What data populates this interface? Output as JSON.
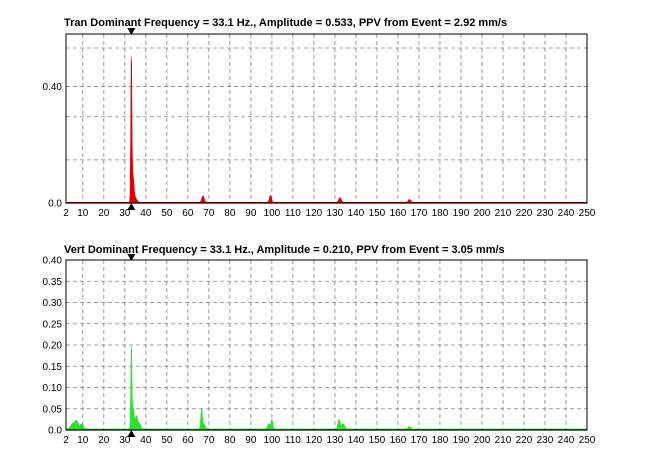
{
  "chart_data": [
    {
      "type": "area",
      "title": "Tran Dominant Frequency = 33.1 Hz., Amplitude = 0.533,  PPV from Event = 2.92 mm/s",
      "xlabel": "",
      "ylabel": "",
      "xlim": [
        2,
        250
      ],
      "ylim": [
        0,
        0.58
      ],
      "x_ticks": [
        "2",
        "10",
        "20",
        "30",
        "40",
        "50",
        "60",
        "70",
        "80",
        "90",
        "100",
        "110",
        "120",
        "130",
        "140",
        "150",
        "160",
        "170",
        "180",
        "190",
        "200",
        "210",
        "220",
        "230",
        "240",
        "250"
      ],
      "y_ticks": [
        {
          "value": 0.0,
          "label": "0.0"
        },
        {
          "value": 0.4,
          "label": "0.40"
        }
      ],
      "grid": true,
      "dominant_frequency": 33.1,
      "series": [
        {
          "color": "#e00000",
          "peaks": [
            {
              "x": 33.1,
              "y": 0.533,
              "w": 0.35
            },
            {
              "x": 33.9,
              "y": 0.09,
              "w": 0.6
            },
            {
              "x": 35.0,
              "y": 0.015,
              "w": 1.0
            },
            {
              "x": 67.2,
              "y": 0.022,
              "w": 0.8
            },
            {
              "x": 99.3,
              "y": 0.024,
              "w": 0.7
            },
            {
              "x": 132.4,
              "y": 0.016,
              "w": 0.8
            },
            {
              "x": 165.5,
              "y": 0.01,
              "w": 0.8
            }
          ]
        }
      ]
    },
    {
      "type": "area",
      "title": "Vert Dominant Frequency = 33.1 Hz., Amplitude = 0.210,  PPV from Event = 3.05 mm/s",
      "xlabel": "",
      "ylabel": "",
      "xlim": [
        2,
        250
      ],
      "ylim": [
        0,
        0.4
      ],
      "x_ticks": [
        "2",
        "10",
        "20",
        "30",
        "40",
        "50",
        "60",
        "70",
        "80",
        "90",
        "100",
        "110",
        "120",
        "130",
        "140",
        "150",
        "160",
        "170",
        "180",
        "190",
        "200",
        "210",
        "220",
        "230",
        "240",
        "250"
      ],
      "y_ticks": [
        {
          "value": 0.0,
          "label": "0.0"
        },
        {
          "value": 0.05,
          "label": "0.05"
        },
        {
          "value": 0.1,
          "label": "0.10"
        },
        {
          "value": 0.15,
          "label": "0.15"
        },
        {
          "value": 0.2,
          "label": "0.20"
        },
        {
          "value": 0.25,
          "label": "0.25"
        },
        {
          "value": 0.3,
          "label": "0.30"
        },
        {
          "value": 0.35,
          "label": "0.35"
        },
        {
          "value": 0.4,
          "label": "0.40"
        }
      ],
      "grid": true,
      "dominant_frequency": 33.1,
      "series": [
        {
          "color": "#33dd33",
          "peaks": [
            {
              "x": 5.0,
              "y": 0.012,
              "w": 1.2
            },
            {
              "x": 7.0,
              "y": 0.02,
              "w": 1.2
            },
            {
              "x": 9.5,
              "y": 0.012,
              "w": 1.0
            },
            {
              "x": 33.1,
              "y": 0.21,
              "w": 0.35
            },
            {
              "x": 34.0,
              "y": 0.05,
              "w": 0.6
            },
            {
              "x": 35.5,
              "y": 0.03,
              "w": 0.8
            },
            {
              "x": 37.0,
              "y": 0.012,
              "w": 1.0
            },
            {
              "x": 66.5,
              "y": 0.045,
              "w": 0.5
            },
            {
              "x": 67.5,
              "y": 0.012,
              "w": 1.0
            },
            {
              "x": 98.5,
              "y": 0.012,
              "w": 0.8
            },
            {
              "x": 100.0,
              "y": 0.022,
              "w": 0.6
            },
            {
              "x": 132.0,
              "y": 0.022,
              "w": 0.8
            },
            {
              "x": 134.0,
              "y": 0.012,
              "w": 1.0
            },
            {
              "x": 165.5,
              "y": 0.006,
              "w": 0.8
            }
          ]
        }
      ]
    }
  ]
}
